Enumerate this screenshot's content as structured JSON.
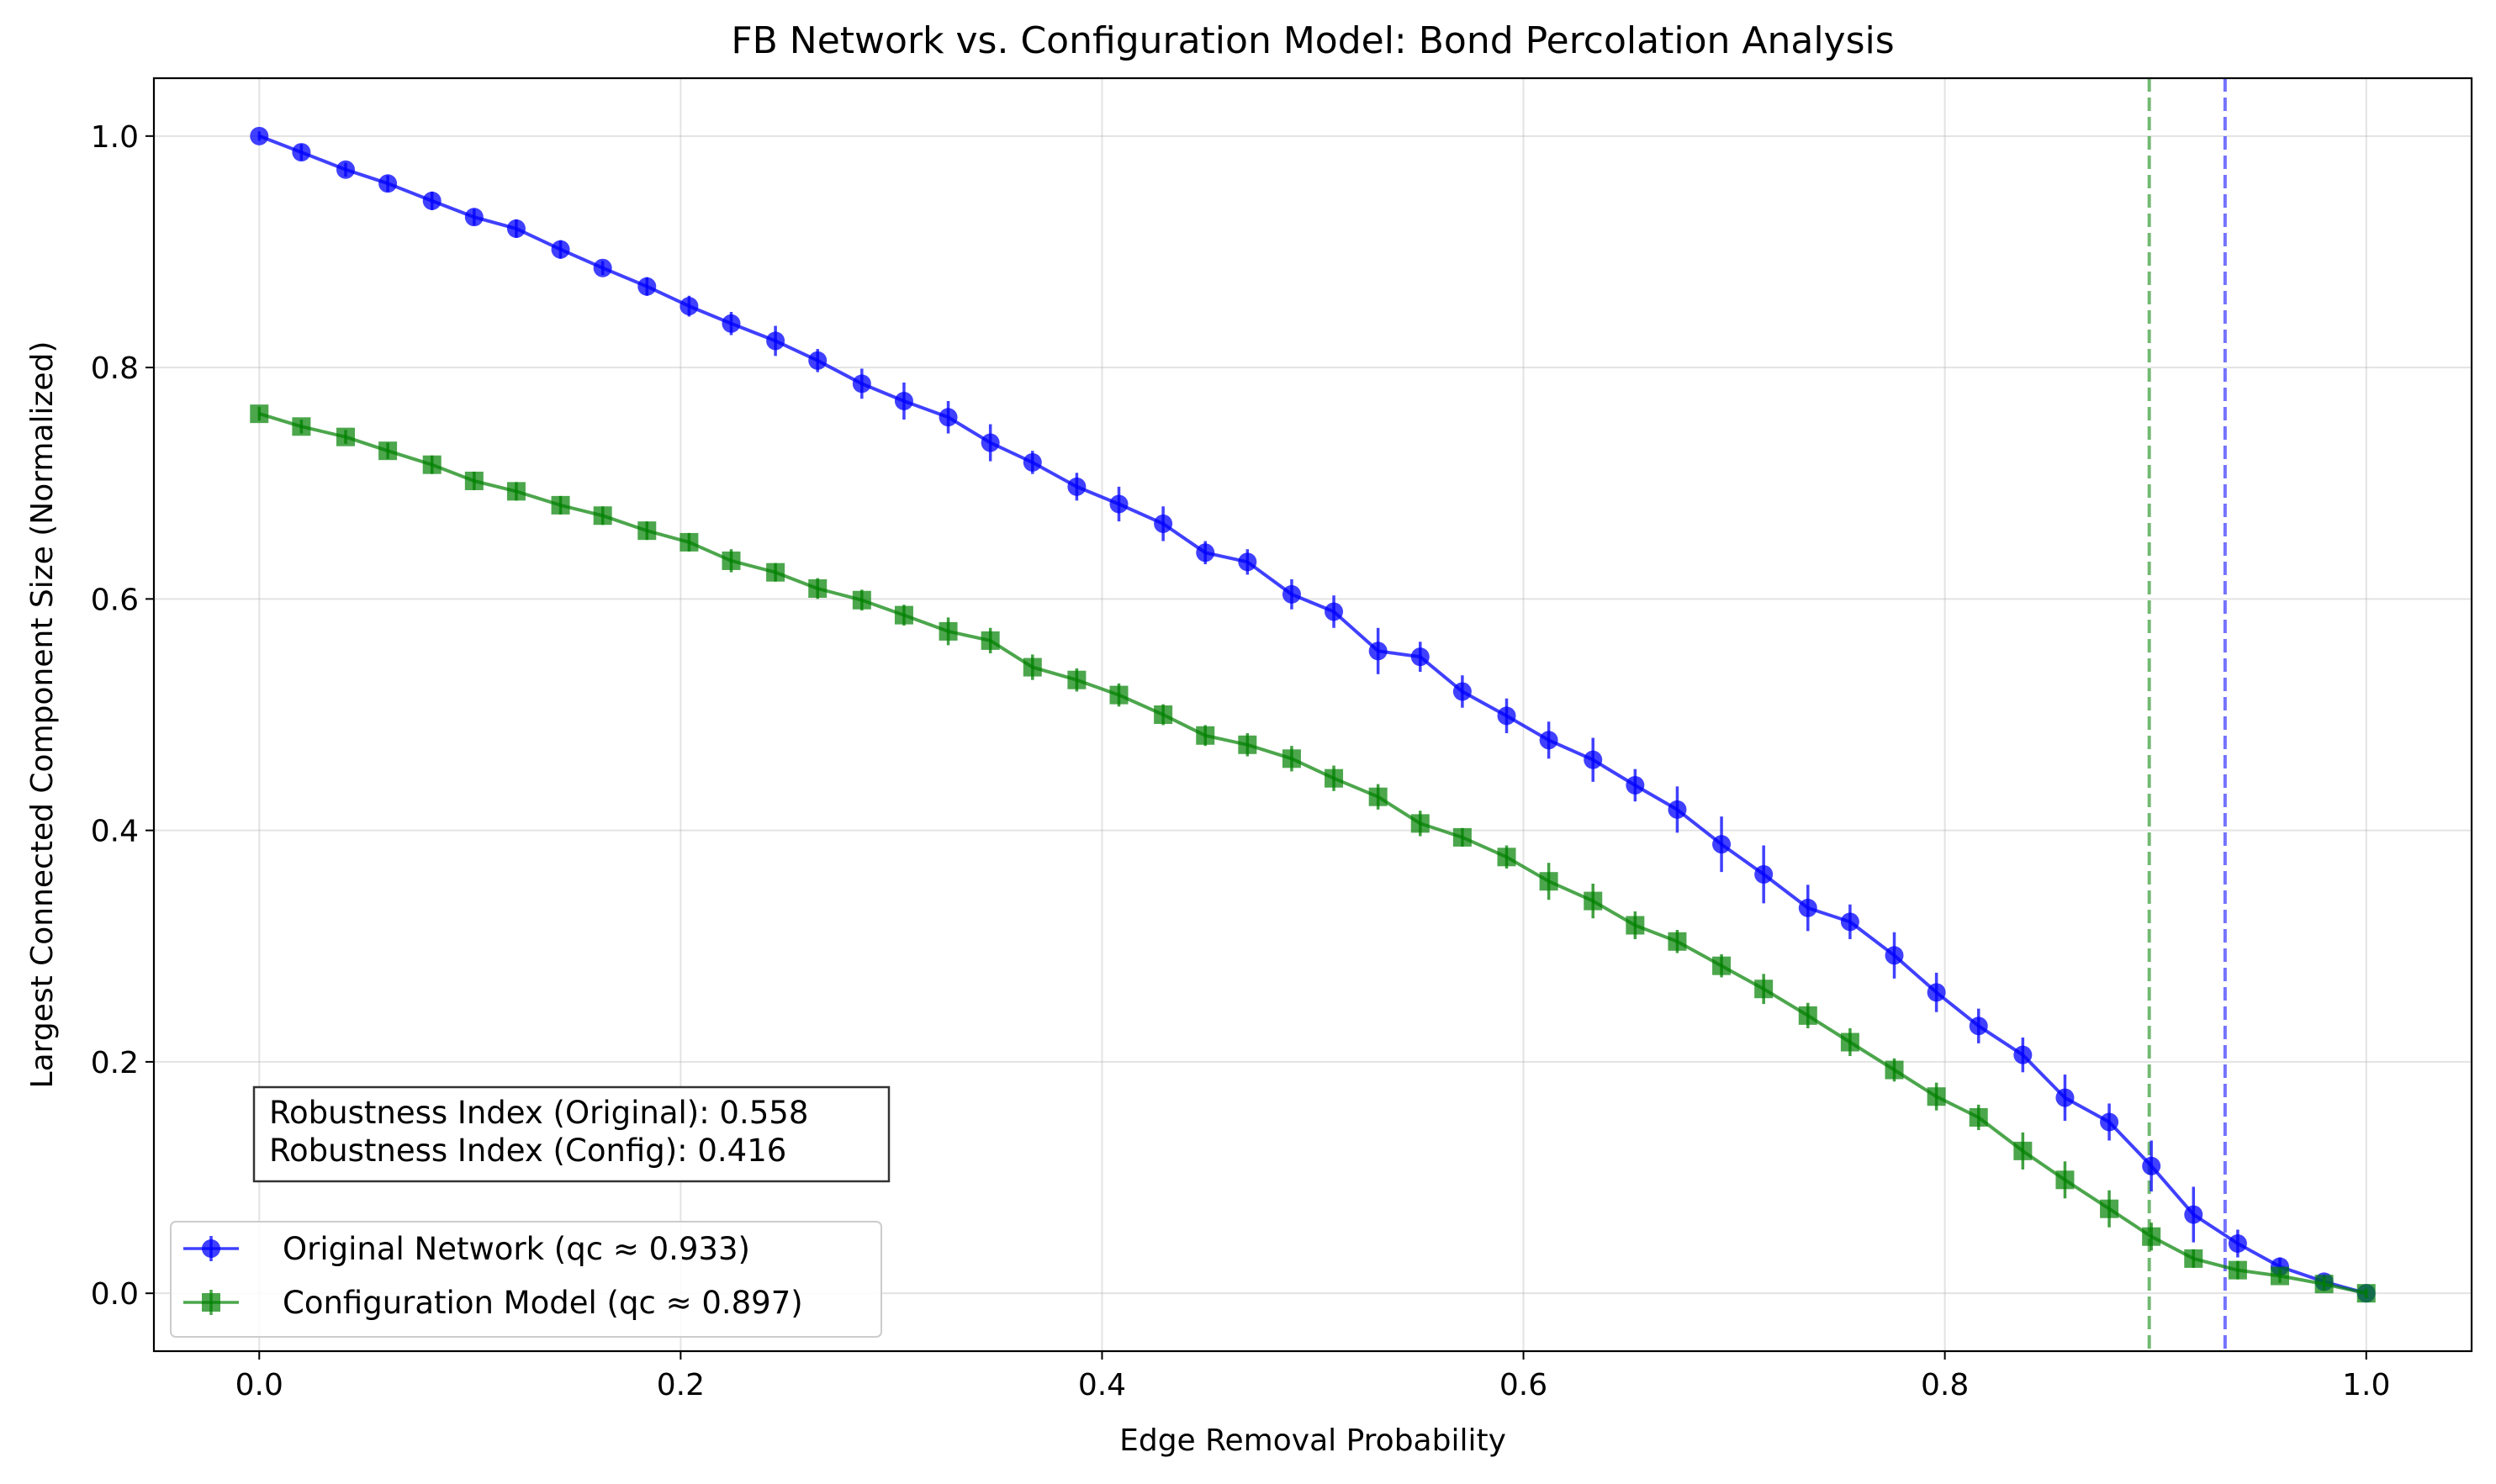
{
  "chart_data": {
    "type": "line",
    "title": "FB Network vs. Configuration Model: Bond Percolation Analysis",
    "xlabel": "Edge Removal Probability",
    "ylabel": "Largest Connected Component Size (Normalized)",
    "xlim": [
      -0.05,
      1.05
    ],
    "ylim": [
      -0.05,
      1.05
    ],
    "xticks": [
      0.0,
      0.2,
      0.4,
      0.6,
      0.8,
      1.0
    ],
    "xtick_labels": [
      "0.0",
      "0.2",
      "0.4",
      "0.6",
      "0.8",
      "1.0"
    ],
    "yticks": [
      0.0,
      0.2,
      0.4,
      0.6,
      0.8,
      1.0
    ],
    "ytick_labels": [
      "0.0",
      "0.2",
      "0.4",
      "0.6",
      "0.8",
      "1.0"
    ],
    "grid": true,
    "legend_position": "lower-left",
    "x": [
      0.0,
      0.02,
      0.041,
      0.061,
      0.082,
      0.102,
      0.122,
      0.143,
      0.163,
      0.184,
      0.204,
      0.224,
      0.245,
      0.265,
      0.286,
      0.306,
      0.327,
      0.347,
      0.367,
      0.388,
      0.408,
      0.429,
      0.449,
      0.469,
      0.49,
      0.51,
      0.531,
      0.551,
      0.571,
      0.592,
      0.612,
      0.633,
      0.653,
      0.673,
      0.694,
      0.714,
      0.735,
      0.755,
      0.776,
      0.796,
      0.816,
      0.837,
      0.857,
      0.878,
      0.898,
      0.918,
      0.939,
      0.959,
      0.98,
      1.0
    ],
    "series": [
      {
        "name": "Original Network (qc ≈ 0.933)",
        "color": "#0000ff",
        "marker": "circle",
        "values": [
          1.0,
          0.986,
          0.971,
          0.959,
          0.944,
          0.93,
          0.92,
          0.902,
          0.886,
          0.87,
          0.853,
          0.838,
          0.823,
          0.806,
          0.786,
          0.771,
          0.757,
          0.735,
          0.718,
          0.697,
          0.682,
          0.665,
          0.64,
          0.632,
          0.604,
          0.589,
          0.555,
          0.55,
          0.52,
          0.499,
          0.478,
          0.461,
          0.439,
          0.418,
          0.388,
          0.362,
          0.333,
          0.321,
          0.292,
          0.26,
          0.231,
          0.206,
          0.169,
          0.148,
          0.11,
          0.068,
          0.043,
          0.023,
          0.01,
          0.0
        ],
        "errors": [
          0.004,
          0.007,
          0.006,
          0.007,
          0.008,
          0.007,
          0.008,
          0.008,
          0.006,
          0.008,
          0.009,
          0.01,
          0.013,
          0.01,
          0.013,
          0.016,
          0.014,
          0.016,
          0.01,
          0.012,
          0.015,
          0.015,
          0.01,
          0.011,
          0.013,
          0.014,
          0.02,
          0.013,
          0.014,
          0.015,
          0.016,
          0.019,
          0.014,
          0.02,
          0.024,
          0.025,
          0.02,
          0.015,
          0.02,
          0.017,
          0.015,
          0.015,
          0.02,
          0.016,
          0.022,
          0.024,
          0.012,
          0.008,
          0.006,
          0.004
        ]
      },
      {
        "name": "Configuration Model (qc ≈ 0.897)",
        "color": "#008000",
        "marker": "square",
        "values": [
          0.76,
          0.749,
          0.74,
          0.728,
          0.716,
          0.702,
          0.693,
          0.681,
          0.672,
          0.659,
          0.649,
          0.633,
          0.623,
          0.609,
          0.599,
          0.586,
          0.572,
          0.564,
          0.541,
          0.53,
          0.517,
          0.5,
          0.482,
          0.474,
          0.462,
          0.445,
          0.429,
          0.406,
          0.394,
          0.377,
          0.356,
          0.339,
          0.318,
          0.304,
          0.283,
          0.263,
          0.24,
          0.217,
          0.193,
          0.17,
          0.152,
          0.123,
          0.098,
          0.073,
          0.049,
          0.03,
          0.02,
          0.015,
          0.008,
          0.0
        ],
        "errors": [
          0.006,
          0.006,
          0.006,
          0.007,
          0.008,
          0.008,
          0.008,
          0.008,
          0.008,
          0.008,
          0.008,
          0.01,
          0.008,
          0.009,
          0.009,
          0.009,
          0.012,
          0.011,
          0.011,
          0.01,
          0.01,
          0.009,
          0.009,
          0.01,
          0.011,
          0.011,
          0.011,
          0.011,
          0.008,
          0.01,
          0.016,
          0.015,
          0.012,
          0.01,
          0.01,
          0.013,
          0.011,
          0.012,
          0.01,
          0.012,
          0.011,
          0.016,
          0.016,
          0.016,
          0.012,
          0.008,
          0.008,
          0.006,
          0.006,
          0.004
        ]
      }
    ],
    "vlines": [
      {
        "x": 0.897,
        "color": "#008000",
        "style": "dashed"
      },
      {
        "x": 0.933,
        "color": "#0000ff",
        "style": "dashed"
      }
    ],
    "annotation": [
      "Robustness Index (Original): 0.558",
      "Robustness Index (Config): 0.416"
    ]
  }
}
